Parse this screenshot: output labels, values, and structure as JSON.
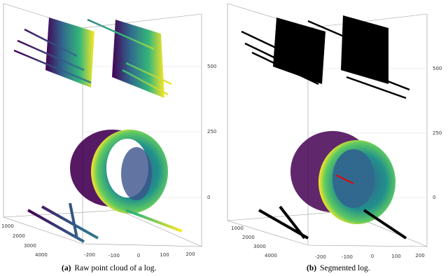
{
  "panels": [
    {
      "label": "(a)",
      "caption": "Raw point cloud of a log.",
      "z_ticks": [
        "500",
        "250",
        "0"
      ],
      "y_ticks": [
        "1000",
        "2000",
        "3000",
        "4000"
      ],
      "x_ticks": [
        "-200",
        "-100",
        "0",
        "100",
        "200"
      ]
    },
    {
      "label": "(b)",
      "caption": "Segmented log.",
      "z_ticks": [
        "500",
        "250",
        "0"
      ],
      "y_ticks": [
        "1000",
        "2000",
        "3000",
        "4000"
      ],
      "x_ticks": [
        "-200",
        "-100",
        "0",
        "100",
        "200"
      ]
    }
  ]
}
